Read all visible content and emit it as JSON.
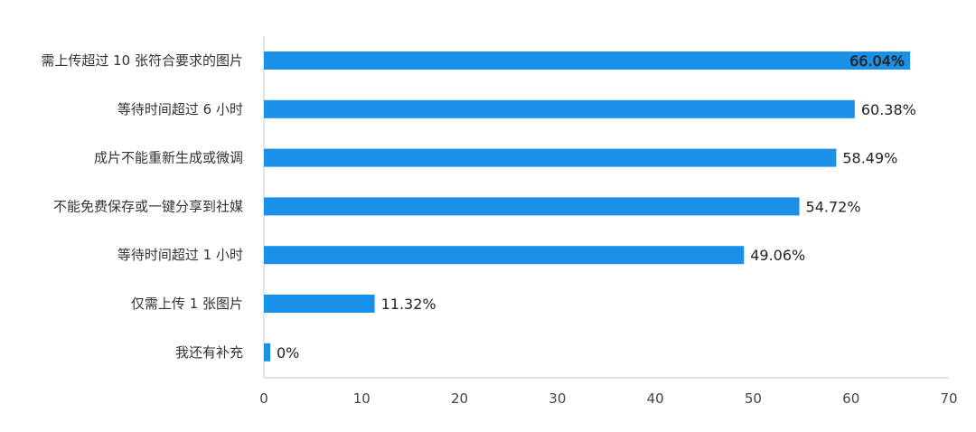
{
  "chart_data": {
    "type": "bar",
    "orientation": "horizontal",
    "categories": [
      "需上传超过 10 张符合要求的图片",
      "等待时间超过 6 小时",
      "成片不能重新生成或微调",
      "不能免费保存或一键分享到社媒",
      "等待时间超过 1 小时",
      "仅需上传 1 张图片",
      "我还有补充"
    ],
    "values": [
      66.04,
      60.38,
      58.49,
      54.72,
      49.06,
      11.32,
      0
    ],
    "value_labels": [
      "66.04%",
      "60.38%",
      "58.49%",
      "54.72%",
      "49.06%",
      "11.32%",
      "0%"
    ],
    "xlim": [
      0,
      70
    ],
    "x_ticks": [
      "0",
      "10",
      "20",
      "30",
      "40",
      "50",
      "60",
      "70"
    ],
    "bar_color": "#1a90e8",
    "grid": false,
    "legend": "none",
    "title": "",
    "xlabel": "",
    "ylabel": ""
  }
}
